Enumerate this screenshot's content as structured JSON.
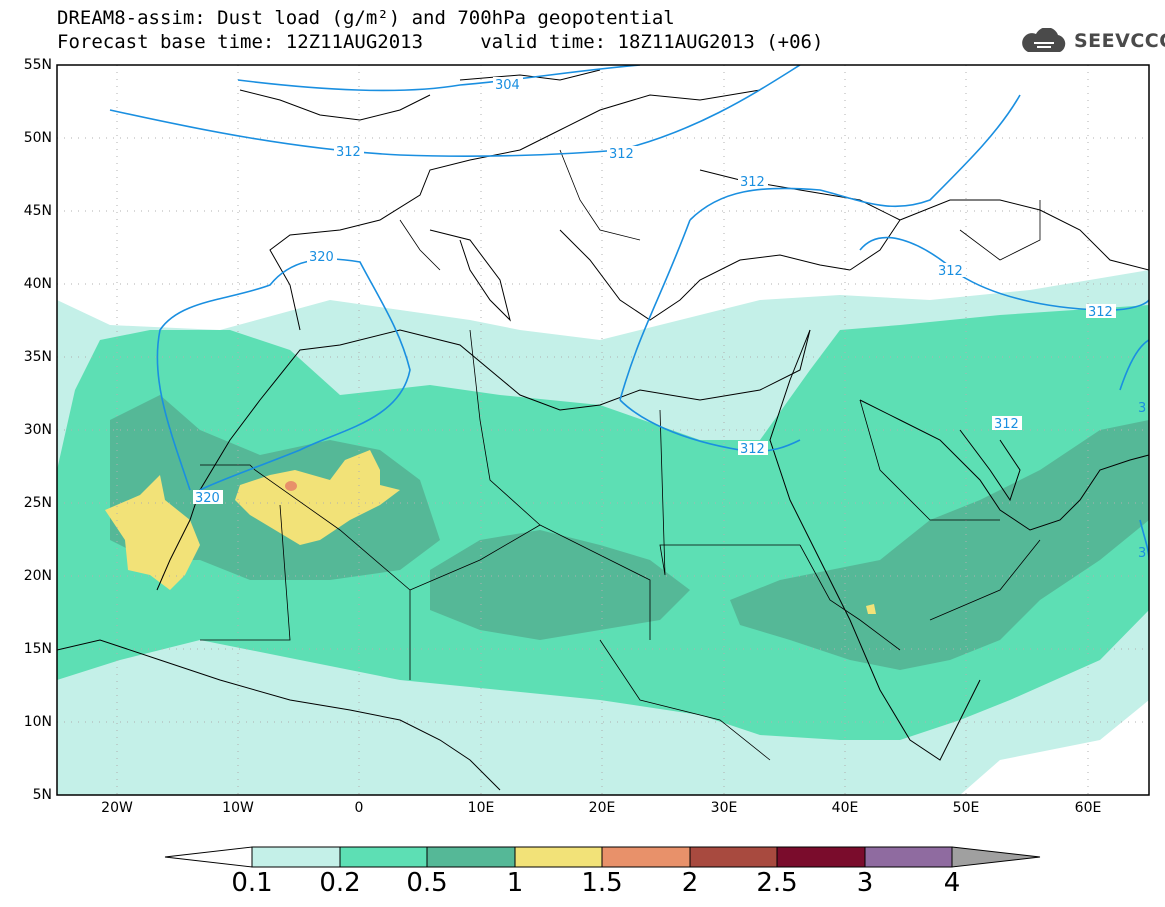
{
  "title": {
    "line1": "DREAM8-assim: Dust load (g/m²) and 700hPa geopotential",
    "line2": "Forecast base time: 12Z11AUG2013     valid time: 18Z11AUG2013 (+06)"
  },
  "logo": {
    "text": "SEEVCCC",
    "icon": "cloud-icon"
  },
  "lat_labels": [
    "55N",
    "50N",
    "45N",
    "40N",
    "35N",
    "30N",
    "25N",
    "20N",
    "15N",
    "10N",
    "5N"
  ],
  "lon_labels": [
    "20W",
    "10W",
    "0",
    "10E",
    "20E",
    "30E",
    "40E",
    "50E",
    "60E"
  ],
  "contour_labels": [
    "304",
    "312",
    "312",
    "312",
    "320",
    "312",
    "312",
    "312",
    "320",
    "3",
    "3"
  ],
  "colorbar": {
    "ticks": [
      "0.1",
      "0.2",
      "0.5",
      "1",
      "1.5",
      "2",
      "2.5",
      "3",
      "4"
    ],
    "colors": [
      "#c4f0e8",
      "#5ddfb4",
      "#55b897",
      "#f2e278",
      "#e8916a",
      "#a84a3f",
      "#7a0c2c",
      "#8f6ba0"
    ],
    "low_color": "#ffffff",
    "high_color": "#a0a0a0"
  },
  "map_colors": {
    "dust_lightest": "#c4f0e8",
    "dust_light": "#5ddfb4",
    "dust_mid": "#55b897",
    "dust_high": "#f2e278",
    "dust_peak": "#e8916a",
    "geopotential_line": "#1a8fe0"
  }
}
